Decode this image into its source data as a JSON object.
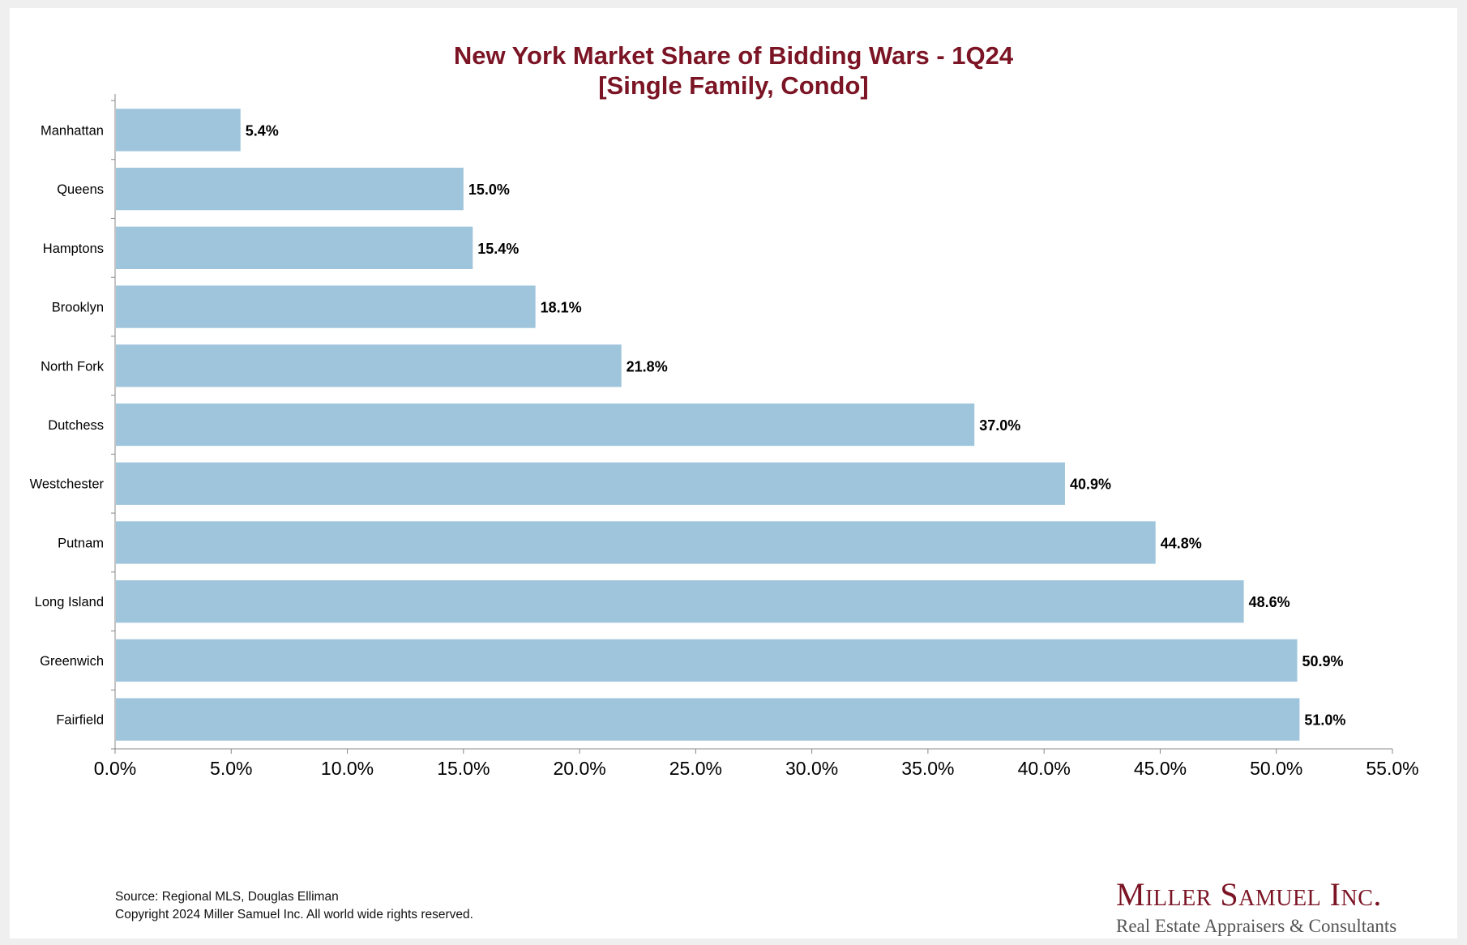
{
  "chart_data": {
    "type": "bar",
    "orientation": "horizontal",
    "title": "New York Market Share of Bidding Wars - 1Q24",
    "subtitle": "[Single Family, Condo]",
    "categories": [
      "Manhattan",
      "Queens",
      "Hamptons",
      "Brooklyn",
      "North Fork",
      "Dutchess",
      "Westchester",
      "Putnam",
      "Long Island",
      "Greenwich",
      "Fairfield"
    ],
    "values": [
      5.4,
      15.0,
      15.4,
      18.1,
      21.8,
      37.0,
      40.9,
      44.8,
      48.6,
      50.9,
      51.0
    ],
    "value_labels": [
      "5.4%",
      "15.0%",
      "15.4%",
      "18.1%",
      "21.8%",
      "37.0%",
      "40.9%",
      "44.8%",
      "48.6%",
      "50.9%",
      "51.0%"
    ],
    "xlim": [
      0,
      55
    ],
    "x_ticks": [
      0,
      5,
      10,
      15,
      20,
      25,
      30,
      35,
      40,
      45,
      50,
      55
    ],
    "x_tick_labels": [
      "0.0%",
      "5.0%",
      "10.0%",
      "15.0%",
      "20.0%",
      "25.0%",
      "30.0%",
      "35.0%",
      "40.0%",
      "45.0%",
      "50.0%",
      "55.0%"
    ],
    "xlabel": "",
    "ylabel": "",
    "grid": false,
    "legend": false,
    "bar_color": "#9fc5dc",
    "title_color": "#7b1424"
  },
  "footer": {
    "source": "Source: Regional MLS, Douglas Elliman",
    "copyright": "Copyright 2024 Miller Samuel Inc.  All world wide rights reserved."
  },
  "logo": {
    "name": "Miller Samuel Inc.",
    "tagline": "Real Estate Appraisers & Consultants",
    "color": "#7b1424"
  }
}
